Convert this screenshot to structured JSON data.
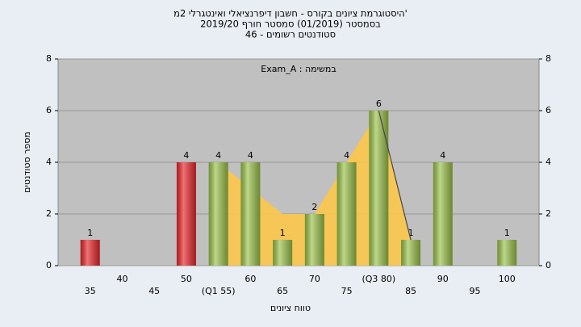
{
  "chart_data": {
    "type": "bar",
    "title": [
      "'היסטוגרמת ציונים בקורס - חשבון דיפרנציאלי ואינטגרלי 2מ",
      "בסמסטר  (01/2019)  סמסטר חורף  2019/20",
      "סטודנטים רשומים - 46"
    ],
    "annotation": "במשימה : Exam_A",
    "xlabel": "טווח ציונים",
    "ylabel": "מספר סטודנטים",
    "categories": [
      "35",
      "40",
      "45",
      "50",
      "(Q1 55)",
      "60",
      "65",
      "70",
      "75",
      "(Q3 80)",
      "85",
      "90",
      "95",
      "100"
    ],
    "values": [
      1,
      0,
      0,
      4,
      4,
      4,
      1,
      2,
      4,
      6,
      1,
      4,
      0,
      1
    ],
    "colors": [
      "#e8262a",
      "#9bc24a",
      "#9bc24a",
      "#e8262a",
      "#9bc24a",
      "#9bc24a",
      "#9bc24a",
      "#9bc24a",
      "#9bc24a",
      "#9bc24a",
      "#9bc24a",
      "#9bc24a",
      "#9bc24a",
      "#9bc24a"
    ],
    "area": {
      "color": "#fcc74a",
      "values": [
        null,
        null,
        null,
        null,
        4,
        3,
        2,
        2,
        4,
        6,
        1,
        null,
        null,
        null
      ]
    },
    "line": {
      "color": "#444444",
      "values": [
        null,
        null,
        null,
        null,
        null,
        null,
        null,
        null,
        null,
        6,
        1,
        null,
        null,
        null
      ]
    },
    "ylim": [
      0,
      8
    ],
    "yticks": [
      0,
      2,
      4,
      6,
      8
    ],
    "y2lim": [
      0,
      8
    ],
    "y2ticks": [
      0,
      2,
      4,
      6,
      8
    ],
    "grid": true
  }
}
